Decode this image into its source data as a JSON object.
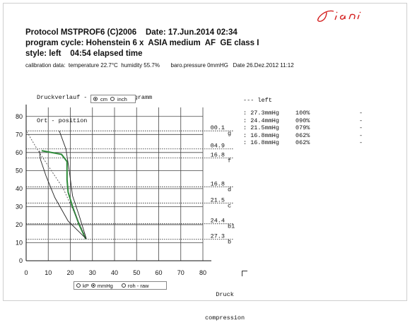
{
  "header": {
    "line1": "Protocol MSTPROF6 (C)2006    Date: 17.Jun.2014 02:34",
    "line2": "program cycle: Hohenstein 6 x  ASIA medium  AF  GE class I",
    "line3": "style: left    04:54 elapsed time",
    "calibration": "calibration data:  temperature 22.7°C  humidity 55.7%       baro.pressure 0mmHG   Date 26.Dez.2012 11:12"
  },
  "chart_title": {
    "line1": "Druckverlauf - pressure diagramm",
    "line2": "Ort - position"
  },
  "unit_toggle": {
    "cm": "cm",
    "inch": "inch"
  },
  "bottom_toggle": {
    "kp": "kP",
    "mmhg": "mmHg",
    "raw": "roh - raw"
  },
  "druck_label": {
    "line1": "Druck",
    "line2": "compression"
  },
  "left_panel": {
    "title": "--- left",
    "steps": [
      {
        "pressure": ": 27.3mmHg",
        "percent": "100%",
        "dash": "-"
      },
      {
        "pressure": ": 24.4mmHg",
        "percent": "090%",
        "dash": "-"
      },
      {
        "pressure": ": 21.5mmHg",
        "percent": "079%",
        "dash": "-"
      },
      {
        "pressure": ": 16.8mmHg",
        "percent": "062%",
        "dash": "-"
      },
      {
        "pressure": ": 16.8mmHg",
        "percent": "062%",
        "dash": "-"
      }
    ]
  },
  "chart_data": {
    "type": "line",
    "xlabel": "Druck compression",
    "ylabel": "Ort - position",
    "xlim": [
      0,
      80
    ],
    "ylim": [
      0,
      85
    ],
    "x_ticks": [
      "0",
      "10",
      "20",
      "30",
      "40",
      "50",
      "60",
      "70",
      "80"
    ],
    "y_ticks": [
      "0",
      "10",
      "20",
      "30",
      "40",
      "50",
      "60",
      "70",
      "80"
    ],
    "grid": true,
    "pressure_markers": [
      {
        "value": "27.3",
        "letter": "b",
        "y": 12
      },
      {
        "value": "24.4",
        "letter": "b1",
        "y": 20.5
      },
      {
        "value": "21.5",
        "letter": "c",
        "y": 32
      },
      {
        "value": "16.8",
        "letter": "d",
        "y": 41
      },
      {
        "value": "16.8",
        "letter": "f",
        "y": 57
      },
      {
        "value": "04.9",
        "letter": "",
        "y": 62
      },
      {
        "value": "00.1",
        "letter": "g",
        "y": 72
      }
    ],
    "series": [
      {
        "values": [
          [
            27,
            12
          ],
          [
            24,
            20
          ],
          [
            21,
            30
          ],
          [
            19,
            38
          ],
          [
            18.5,
            45
          ],
          [
            18.5,
            55
          ],
          [
            16,
            59
          ],
          [
            7,
            61
          ]
        ],
        "color": "#2e8b3a"
      },
      {
        "values": [
          [
            27.3,
            12
          ],
          [
            19,
            22
          ],
          [
            13,
            35
          ],
          [
            9,
            47
          ],
          [
            6.5,
            56
          ],
          [
            6,
            61
          ]
        ],
        "color": "#222222"
      },
      {
        "values": [
          [
            27.3,
            12
          ],
          [
            24,
            25
          ],
          [
            21,
            36
          ],
          [
            19.5,
            50
          ],
          [
            18,
            62
          ],
          [
            15,
            72
          ]
        ],
        "color": "#222222"
      },
      {
        "values": [
          [
            27.3,
            12
          ],
          [
            16.8,
            40
          ],
          [
            4.9,
            62
          ],
          [
            0.1,
            72
          ]
        ],
        "color": "#555555",
        "style": "dotted"
      }
    ]
  }
}
